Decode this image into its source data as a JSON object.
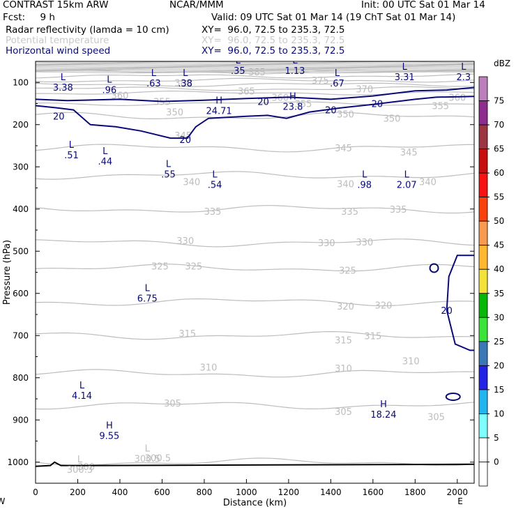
{
  "header": {
    "model": "CONTRAST 15km ARW",
    "center": "NCAR/MMM",
    "init": "Init: 00 UTC Sat 01 Mar 14",
    "fcst": "Fcst:     9 h",
    "valid": "Valid: 09 UTC Sat 01 Mar 14 (19 ChT Sat 01 Mar 14)",
    "field1": "Radar reflectivity (lamda = 10 cm)",
    "field1_xy": "XY=  96.0, 72.5 to 235.3, 72.5",
    "field2": "Potential temperature",
    "field2_xy": "XY=  96.0, 72.5 to 235.3, 72.5",
    "field3": "Horizontal wind speed",
    "field3_xy": "XY=  96.0, 72.5 to 235.3, 72.5"
  },
  "colors": {
    "theta": "#bdbdbd",
    "wind": "#0a0a78",
    "text": "#000000"
  },
  "chart_data": {
    "type": "contour",
    "xlabel": "Distance (km)",
    "ylabel": "Pressure (hPa)",
    "xlim": [
      0,
      2080
    ],
    "ylim": [
      1050,
      50
    ],
    "x_ticks": [
      0,
      200,
      400,
      600,
      800,
      1000,
      1200,
      1400,
      1600,
      1800,
      2000
    ],
    "y_ticks": [
      100,
      200,
      300,
      400,
      500,
      600,
      700,
      800,
      900,
      1000
    ],
    "x_endpoints": {
      "left": "W",
      "right": "E"
    },
    "colorbar": {
      "unit": "dBZ",
      "ticks": [
        0,
        5,
        10,
        15,
        20,
        25,
        30,
        35,
        40,
        45,
        50,
        55,
        60,
        65,
        70,
        75
      ],
      "colors": [
        "#ffffff",
        "#7fffff",
        "#22b5f0",
        "#2323e6",
        "#3a78b6",
        "#3be33b",
        "#07b707",
        "#f2e23a",
        "#ffb830",
        "#f89a52",
        "#f9410d",
        "#f81212",
        "#c80f0f",
        "#9d3643",
        "#8e2d8e",
        "#bb80bb"
      ]
    },
    "theta_contours": [
      {
        "label": "300",
        "pressure": 1000
      },
      {
        "label": "305",
        "pressure": 865
      },
      {
        "label": "310",
        "pressure": 790
      },
      {
        "label": "315",
        "pressure": 700
      },
      {
        "label": "320",
        "pressure": 620
      },
      {
        "label": "325",
        "pressure": 540
      },
      {
        "label": "330",
        "pressure": 480
      },
      {
        "label": "335",
        "pressure": 400
      },
      {
        "label": "340",
        "pressure": 320
      },
      {
        "label": "345",
        "pressure": 255
      },
      {
        "label": "350",
        "pressure": 180
      },
      {
        "label": "355",
        "pressure": 150
      },
      {
        "label": "360",
        "pressure": 125
      },
      {
        "label": "365",
        "pressure": 115
      },
      {
        "label": "370",
        "pressure": 105
      },
      {
        "label": "375",
        "pressure": 95
      },
      {
        "label": "380",
        "pressure": 85
      },
      {
        "label": "385",
        "pressure": 75
      }
    ],
    "theta_labels": [
      {
        "text": "385",
        "x": 1050,
        "p": 75
      },
      {
        "text": "380",
        "x": 700,
        "p": 100
      },
      {
        "text": "375",
        "x": 1350,
        "p": 95
      },
      {
        "text": "370",
        "x": 1560,
        "p": 115
      },
      {
        "text": "365",
        "x": 1000,
        "p": 120
      },
      {
        "text": "360",
        "x": 400,
        "p": 130
      },
      {
        "text": "360",
        "x": 1160,
        "p": 135
      },
      {
        "text": "360",
        "x": 2000,
        "p": 135
      },
      {
        "text": "355",
        "x": 600,
        "p": 145
      },
      {
        "text": "355",
        "x": 1270,
        "p": 150
      },
      {
        "text": "355",
        "x": 1920,
        "p": 155
      },
      {
        "text": "350",
        "x": 660,
        "p": 170
      },
      {
        "text": "350",
        "x": 1470,
        "p": 175
      },
      {
        "text": "350",
        "x": 1690,
        "p": 185
      },
      {
        "text": "345",
        "x": 700,
        "p": 225
      },
      {
        "text": "345",
        "x": 1460,
        "p": 255
      },
      {
        "text": "345",
        "x": 1770,
        "p": 265
      },
      {
        "text": "340",
        "x": 740,
        "p": 335
      },
      {
        "text": "340",
        "x": 1470,
        "p": 340
      },
      {
        "text": "340",
        "x": 1860,
        "p": 335
      },
      {
        "text": "335",
        "x": 840,
        "p": 405
      },
      {
        "text": "335",
        "x": 1490,
        "p": 405
      },
      {
        "text": "335",
        "x": 1720,
        "p": 400
      },
      {
        "text": "330",
        "x": 710,
        "p": 475
      },
      {
        "text": "330",
        "x": 1380,
        "p": 480
      },
      {
        "text": "330",
        "x": 1560,
        "p": 478
      },
      {
        "text": "325",
        "x": 590,
        "p": 535
      },
      {
        "text": "325",
        "x": 750,
        "p": 535
      },
      {
        "text": "325",
        "x": 1480,
        "p": 545
      },
      {
        "text": "320",
        "x": 1470,
        "p": 630
      },
      {
        "text": "320",
        "x": 1650,
        "p": 628
      },
      {
        "text": "315",
        "x": 720,
        "p": 695
      },
      {
        "text": "315",
        "x": 1460,
        "p": 710
      },
      {
        "text": "315",
        "x": 1600,
        "p": 700
      },
      {
        "text": "310",
        "x": 820,
        "p": 775
      },
      {
        "text": "310",
        "x": 1460,
        "p": 777
      },
      {
        "text": "310",
        "x": 1780,
        "p": 760
      },
      {
        "text": "305",
        "x": 650,
        "p": 860
      },
      {
        "text": "305",
        "x": 1460,
        "p": 880
      },
      {
        "text": "305",
        "x": 1900,
        "p": 892
      },
      {
        "text": "300",
        "x": 240,
        "p": 1010
      },
      {
        "text": "300.5",
        "x": 580,
        "p": 990
      }
    ],
    "wind_contours": [
      {
        "level": 20,
        "label_x": 1080,
        "label_p": 145
      },
      {
        "level": 20,
        "label_x": 1400,
        "label_p": 165
      },
      {
        "level": 20,
        "label_x": 1620,
        "label_p": 150
      },
      {
        "level": 20,
        "label_x": 110,
        "label_p": 180
      },
      {
        "level": 20,
        "label_x": 710,
        "label_p": 235
      },
      {
        "level": 20,
        "label_x": 1950,
        "label_p": 640
      }
    ],
    "extrema": [
      {
        "type": "L",
        "value": "3.38",
        "x": 130,
        "p": 95
      },
      {
        "type": "L",
        "value": ".96",
        "x": 350,
        "p": 100
      },
      {
        "type": "L",
        "value": ".63",
        "x": 560,
        "p": 85
      },
      {
        "type": "L",
        "value": ".38",
        "x": 710,
        "p": 85
      },
      {
        "type": "L",
        "value": ".35",
        "x": 960,
        "p": 55
      },
      {
        "type": "L",
        "value": "1.13",
        "x": 1230,
        "p": 55
      },
      {
        "type": "L",
        "value": ".67",
        "x": 1430,
        "p": 85
      },
      {
        "type": "L",
        "value": "3.31",
        "x": 1750,
        "p": 70
      },
      {
        "type": "L",
        "value": "2.3",
        "x": 2030,
        "p": 70
      },
      {
        "type": "L",
        "value": ".51",
        "x": 170,
        "p": 255
      },
      {
        "type": "L",
        "value": ".44",
        "x": 330,
        "p": 270
      },
      {
        "type": "L",
        "value": ".55",
        "x": 630,
        "p": 300
      },
      {
        "type": "L",
        "value": ".54",
        "x": 850,
        "p": 325
      },
      {
        "type": "L",
        "value": ".98",
        "x": 1560,
        "p": 325
      },
      {
        "type": "L",
        "value": "2.07",
        "x": 1760,
        "p": 325
      },
      {
        "type": "H",
        "value": "24.71",
        "x": 870,
        "p": 150
      },
      {
        "type": "H",
        "value": "23.8",
        "x": 1220,
        "p": 140
      },
      {
        "type": "L",
        "value": "6.75",
        "x": 530,
        "p": 595
      },
      {
        "type": "L",
        "value": "4.14",
        "x": 220,
        "p": 825
      },
      {
        "type": "H",
        "value": "9.55",
        "x": 350,
        "p": 920
      },
      {
        "type": "H",
        "value": "18.24",
        "x": 1650,
        "p": 870
      },
      {
        "type": "L",
        "value": "300.3",
        "x": 210,
        "p": 1000
      },
      {
        "type": "L",
        "value": "300.5",
        "x": 530,
        "p": 975
      }
    ]
  }
}
